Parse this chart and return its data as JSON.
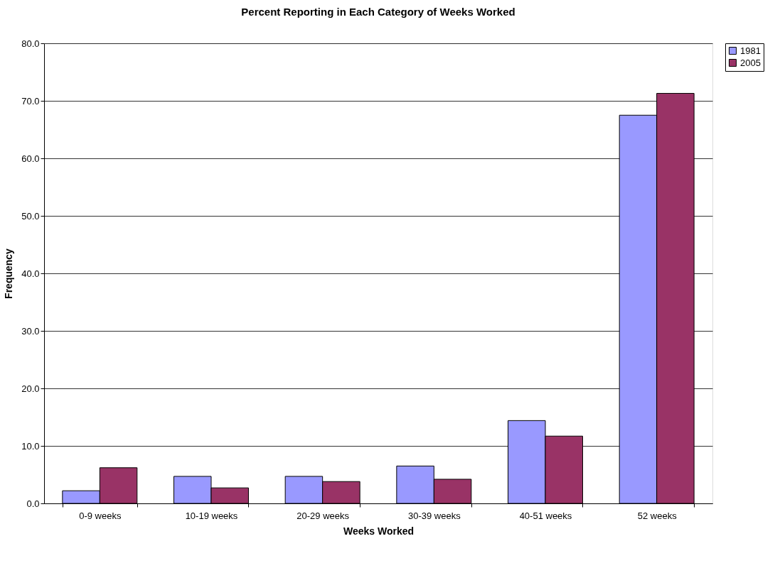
{
  "chart_data": {
    "type": "bar",
    "title": "Percent Reporting in Each Category of Weeks Worked",
    "xlabel": "Weeks Worked",
    "ylabel": "Frequency",
    "categories": [
      "0-9 weeks",
      "10-19 weeks",
      "20-29 weeks",
      "30-39 weeks",
      "40-51 weeks",
      "52 weeks"
    ],
    "series": [
      {
        "name": "1981",
        "color": "#9999ff",
        "values": [
          2.2,
          4.7,
          4.7,
          6.5,
          14.4,
          67.5
        ]
      },
      {
        "name": "2005",
        "color": "#993366",
        "values": [
          6.2,
          2.7,
          3.8,
          4.2,
          11.7,
          71.3
        ]
      }
    ],
    "ylim": [
      0,
      80
    ],
    "yticks": [
      {
        "value": 0,
        "label": "0.0"
      },
      {
        "value": 10,
        "label": "10.0"
      },
      {
        "value": 20,
        "label": "20.0"
      },
      {
        "value": 30,
        "label": "30.0"
      },
      {
        "value": 40,
        "label": "40.0"
      },
      {
        "value": 50,
        "label": "50.0"
      },
      {
        "value": 60,
        "label": "60.0"
      },
      {
        "value": 70,
        "label": "70.0"
      },
      {
        "value": 80,
        "label": "80.0"
      }
    ],
    "grid": "y",
    "legend": "right"
  }
}
